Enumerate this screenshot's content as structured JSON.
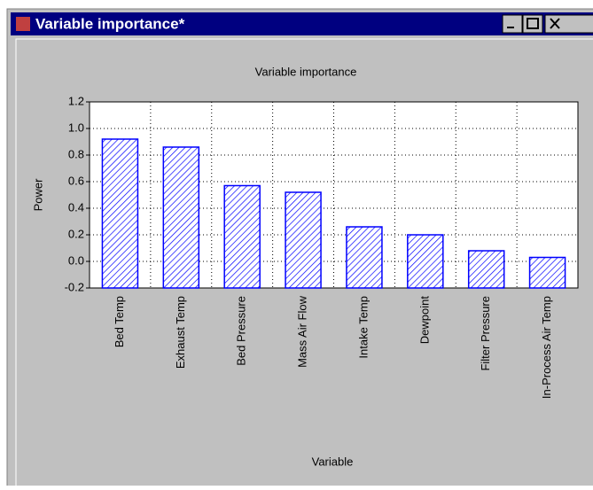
{
  "window_title": "Variable importance*",
  "chart_data": {
    "type": "bar",
    "title": "Variable importance",
    "x_label": "Variable",
    "y_label": "Power",
    "categories": [
      "Bed Temp",
      "Exhaust Temp",
      "Bed Pressure",
      "Mass Air Flow",
      "Intake Temp",
      "Dewpoint",
      "Filter Pressure",
      "In-Process Air Temp"
    ],
    "values": [
      0.92,
      0.86,
      0.57,
      0.52,
      0.26,
      0.2,
      0.08,
      0.03
    ],
    "color": "#0000ff",
    "ylim": [
      -0.2,
      1.2
    ],
    "yticks": [
      -0.2,
      {
        "value": 0,
        "label": "0.0"
      },
      0.2,
      0.4,
      0.6,
      0.8,
      {
        "value": 1,
        "label": "1.0"
      },
      1.2
    ],
    "grid": true
  }
}
